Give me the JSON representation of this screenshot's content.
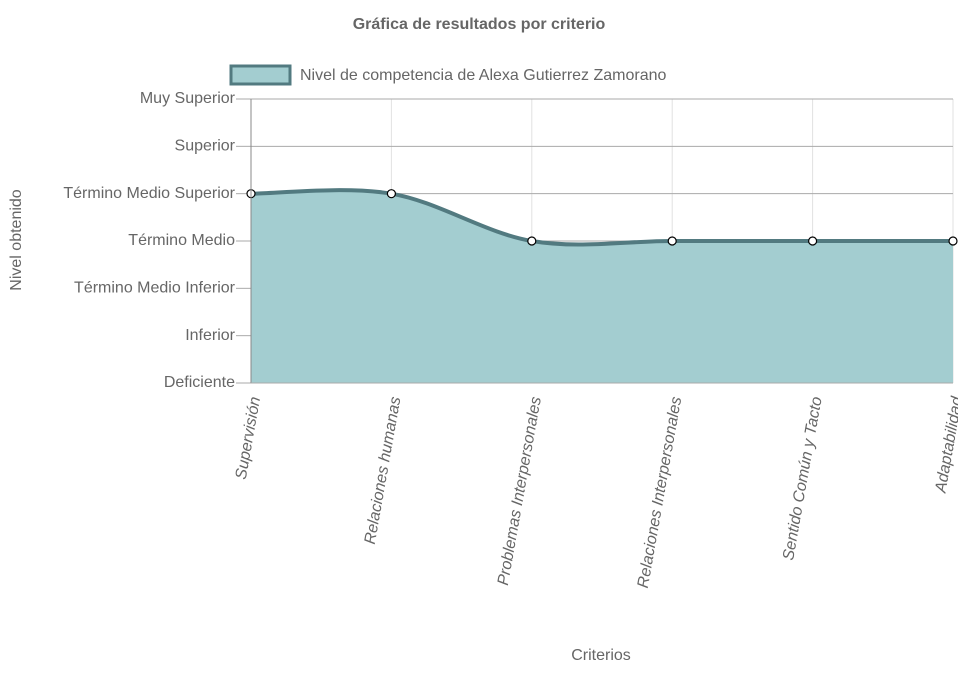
{
  "chart_data": {
    "type": "area",
    "title": "Gráfica de resultados por criterio",
    "x_label": "Criterios",
    "y_label": "Nivel obtenido",
    "categories": [
      "Supervisión",
      "Relaciones humanas",
      "Problemas Interpersonales",
      "Relaciones Interpersonales",
      "Sentido Común y Tacto",
      "Adaptabilidad"
    ],
    "series": [
      {
        "name": "Nivel de competencia de Alexa Gutierrez Zamorano",
        "color": "#527a80",
        "fill_color": "#a3cdd0",
        "values": [
          4,
          4,
          3,
          3,
          3,
          3
        ]
      }
    ],
    "ylim": [
      0,
      6
    ],
    "yticks": [
      {
        "value": 0,
        "label": "Deficiente"
      },
      {
        "value": 1,
        "label": "Inferior"
      },
      {
        "value": 2,
        "label": "Término Medio Inferior"
      },
      {
        "value": 3,
        "label": "Término Medio"
      },
      {
        "value": 4,
        "label": "Término Medio Superior"
      },
      {
        "value": 5,
        "label": "Superior"
      },
      {
        "value": 6,
        "label": "Muy Superior"
      }
    ],
    "grid": true
  }
}
